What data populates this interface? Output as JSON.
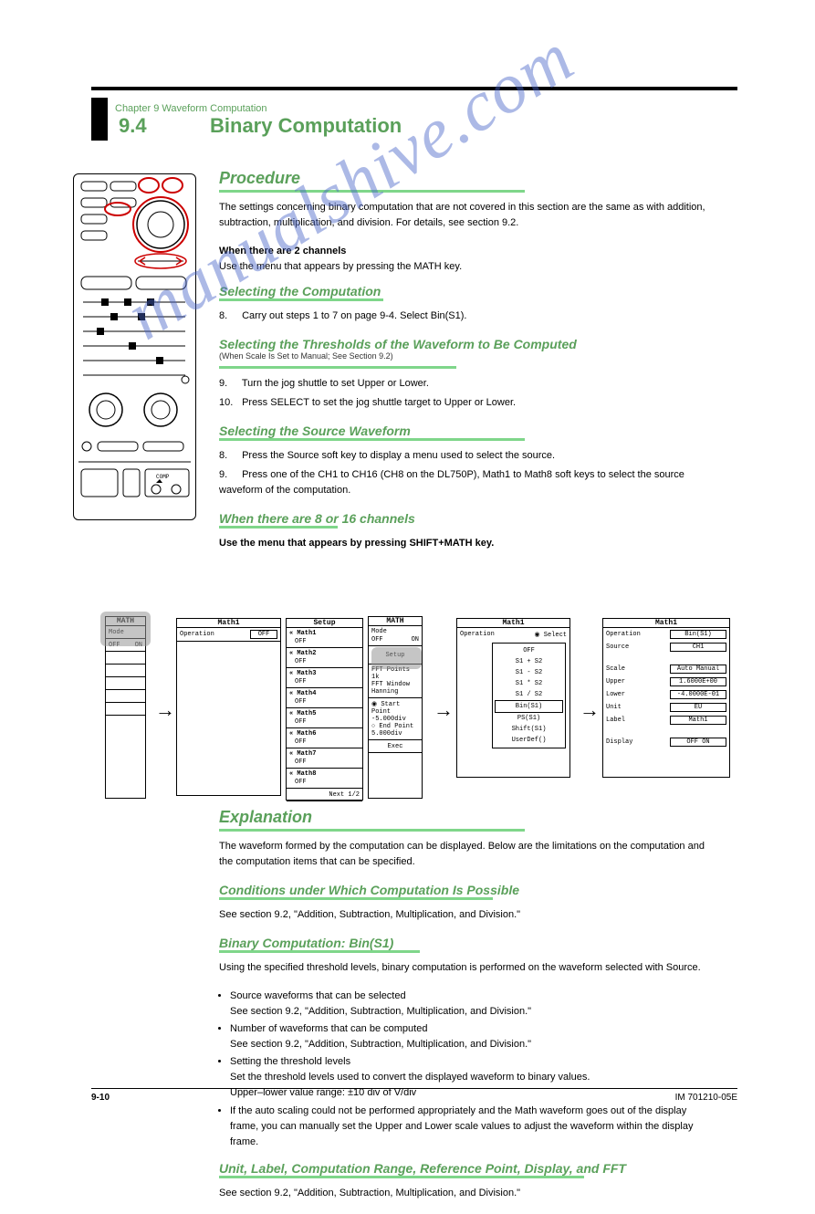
{
  "watermark": "manualshive.com",
  "chapter": "Chapter 9 Waveform Computation",
  "section_num": "9.4",
  "section_title": "Binary Computation",
  "procedure": {
    "heading": "Procedure",
    "intro": "The settings concerning binary computation that are not covered in this section are the same as with addition, subtraction, multiplication, and division. For details, see section 9.2.",
    "sel_comp_heading": "Selecting the Computation",
    "sel_comp_body": "Carry out steps 1 to 7 on page 9-4. Select Bin(S1).",
    "sel_thresh_heading": "Selecting the Thresholds of the Waveform to Be Computed",
    "sel_thresh_body1": "Turn the jog shuttle to set Upper or Lower.",
    "sel_thresh_body2": "Press SELECT to set the jog shuttle target to Upper or Lower.",
    "sel_source_heading": "Selecting the Source Waveform",
    "sel_source_body": "Press the Source soft key to display a menu used to select the source.",
    "sel_source_body2": "Press one of the CH1 to CH16 (CH8 on the DL750P), Math1 to Math8 soft keys to select the source waveform of the computation.",
    "sel_step": "8.",
    "sel_step9": "9.",
    "sel_step10": "10.",
    "sel_step_src": "8.",
    "sel_step_src9": "9.",
    "note_2ch": "When there are 2 channels",
    "note_2ch_menu": "Use the menu that appears by pressing the MATH key."
  },
  "menu_flow": {
    "panel_math": {
      "title": "MATH",
      "mode": "Mode",
      "off": "OFF",
      "on": "ON"
    },
    "panel_math1": {
      "title": "Math1",
      "operation": "Operation",
      "value": "OFF"
    },
    "panel_setup": {
      "title": "Setup",
      "rows": [
        {
          "label": "Math1",
          "val": "OFF"
        },
        {
          "label": "Math2",
          "val": "OFF"
        },
        {
          "label": "Math3",
          "val": "OFF"
        },
        {
          "label": "Math4",
          "val": "OFF"
        },
        {
          "label": "Math5",
          "val": "OFF"
        },
        {
          "label": "Math6",
          "val": "OFF"
        },
        {
          "label": "Math7",
          "val": "OFF"
        },
        {
          "label": "Math8",
          "val": "OFF"
        }
      ],
      "next": "Next",
      "page": "1/2"
    },
    "panel_mode": {
      "title": "MATH",
      "mode_label": "Mode",
      "off": "OFF",
      "on": "ON",
      "setup": "Setup",
      "fft_points": "FFT Points",
      "fft_val": "1k",
      "fft_window": "FFT Window",
      "fft_win_val": "Hanning",
      "start": "Start Point",
      "start_val": "-5.000div",
      "end": "End Point",
      "end_val": "5.000div",
      "exec": "Exec"
    },
    "panel_select": {
      "title": "Math1",
      "operation": "Operation",
      "select": "Select",
      "items": [
        "OFF",
        "S1 + S2",
        "S1 - S2",
        "S1 * S2",
        "S1 / S2",
        "Bin(S1)",
        "PS(S1)",
        "Shift(S1)",
        "UserDef()"
      ]
    },
    "panel_result": {
      "title": "Math1",
      "rows": [
        {
          "label": "Operation",
          "val": "Bin(S1)"
        },
        {
          "label": "Source",
          "val": "CH1"
        },
        {
          "label": "Scale",
          "val": "Auto  Manual"
        },
        {
          "label": "Upper",
          "val": "1.6000E+00"
        },
        {
          "label": "Lower",
          "val": "-4.0000E-01"
        },
        {
          "label": "Unit",
          "val": "EU"
        },
        {
          "label": "Label",
          "val": "Math1"
        },
        {
          "label": "Display",
          "val": "OFF   ON"
        }
      ]
    }
  },
  "explanation": {
    "heading": "Explanation",
    "intro": "The waveform formed by the computation can be displayed. Below are the limitations on the computation and the computation items that can be specified.",
    "cond_heading": "Conditions under Which Computation Is Possible",
    "cond_body": "See section 9.2, \"Addition, Subtraction, Multiplication, and Division.\"",
    "bin_heading": "Binary Computation: Bin(S1)",
    "bin_body": "Using the specified threshold levels, binary computation is performed on the waveform selected with Source.",
    "bullets": [
      "Source waveforms that can be selected\n    See section 9.2, \"Addition, Subtraction, Multiplication, and Division.\"",
      "Number of waveforms that can be computed\n    See section 9.2, \"Addition, Subtraction, Multiplication, and Division.\"",
      "Setting the threshold levels\n    Set the threshold levels used to convert the displayed waveform to binary values.\n    Upper–lower value range: ±10 div of V/div",
      "If the auto scaling could not be performed appropriately and the Math waveform goes out of the display frame, you can manually set the Upper and Lower scale values to adjust the waveform within the display frame."
    ],
    "unit_heading": "Unit, Label, Computation Range, Reference Point, Display, and FFT",
    "unit_body": "See section 9.2, \"Addition, Subtraction, Multiplication, and Division.\""
  },
  "footer": {
    "page": "9-10",
    "manual": "IM 701210-05E"
  },
  "colors": {
    "green_text": "#5aa05a",
    "green_rule": "#7fd68a"
  }
}
